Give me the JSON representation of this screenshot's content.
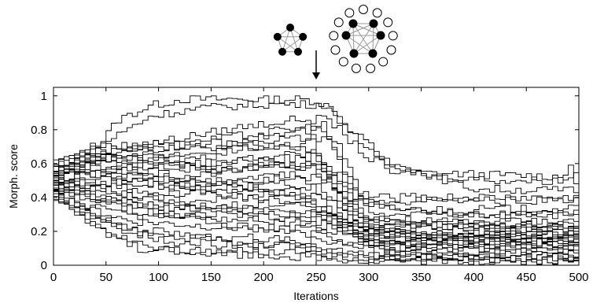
{
  "chart_data": {
    "type": "line",
    "xlabel": "Iterations",
    "ylabel": "Morph. score",
    "xlim": [
      0,
      500
    ],
    "ylim": [
      0,
      1.05
    ],
    "xticks": [
      0,
      50,
      100,
      150,
      200,
      250,
      300,
      350,
      400,
      450,
      500
    ],
    "yticks": [
      0,
      0.2,
      0.4,
      0.6,
      0.8,
      1
    ],
    "grid": false,
    "legend": "none",
    "line_color": "#000000",
    "annotation": {
      "arrow_at_x": 250,
      "graphs": [
        {
          "name": "small-graph-icon",
          "nodes": "5 filled nodes, fully connected"
        },
        {
          "name": "large-graph-icon",
          "nodes": "6 filled nodes inside a ring of 13 hollow nodes"
        }
      ]
    },
    "series": [
      {
        "x": [
          0,
          30,
          60,
          90,
          120,
          170,
          230,
          248,
          262,
          275,
          290,
          320,
          500
        ],
        "values": [
          0.48,
          0.62,
          0.86,
          0.94,
          0.98,
          0.98,
          0.98,
          0.97,
          0.93,
          0.85,
          0.72,
          0.55,
          0.52
        ]
      },
      {
        "x": [
          0,
          40,
          90,
          140,
          200,
          255,
          280,
          320,
          400,
          500
        ],
        "values": [
          0.52,
          0.7,
          0.88,
          0.93,
          0.95,
          0.95,
          0.8,
          0.6,
          0.45,
          0.44
        ]
      },
      {
        "x": [
          0,
          50,
          110,
          180,
          230,
          260,
          300,
          360,
          430,
          480,
          490,
          500
        ],
        "values": [
          0.45,
          0.68,
          0.74,
          0.82,
          0.86,
          0.86,
          0.62,
          0.52,
          0.5,
          0.5,
          0.58,
          0.42
        ]
      },
      {
        "x": [
          0,
          40,
          100,
          160,
          220,
          255,
          275,
          300,
          500
        ],
        "values": [
          0.55,
          0.72,
          0.68,
          0.75,
          0.8,
          0.83,
          0.55,
          0.3,
          0.3
        ]
      },
      {
        "x": [
          0,
          30,
          90,
          150,
          210,
          250,
          270,
          290,
          320,
          500
        ],
        "values": [
          0.6,
          0.65,
          0.7,
          0.72,
          0.77,
          0.8,
          0.7,
          0.42,
          0.38,
          0.38
        ]
      },
      {
        "x": [
          0,
          40,
          80,
          150,
          210,
          260,
          285,
          310,
          500
        ],
        "values": [
          0.5,
          0.62,
          0.72,
          0.7,
          0.74,
          0.75,
          0.4,
          0.4,
          0.4
        ]
      },
      {
        "x": [
          0,
          30,
          80,
          130,
          190,
          245,
          265,
          290,
          330,
          500
        ],
        "values": [
          0.42,
          0.58,
          0.66,
          0.62,
          0.7,
          0.72,
          0.48,
          0.2,
          0.18,
          0.18
        ]
      },
      {
        "x": [
          0,
          25,
          60,
          120,
          180,
          240,
          270,
          300,
          350,
          500
        ],
        "values": [
          0.58,
          0.66,
          0.62,
          0.66,
          0.7,
          0.68,
          0.42,
          0.28,
          0.26,
          0.26
        ]
      },
      {
        "x": [
          0,
          40,
          90,
          140,
          190,
          250,
          280,
          310,
          500
        ],
        "values": [
          0.48,
          0.55,
          0.6,
          0.58,
          0.64,
          0.66,
          0.3,
          0.1,
          0.08
        ]
      },
      {
        "x": [
          0,
          30,
          70,
          130,
          200,
          250,
          275,
          300,
          360,
          500
        ],
        "values": [
          0.62,
          0.7,
          0.64,
          0.6,
          0.62,
          0.64,
          0.44,
          0.18,
          0.15,
          0.15
        ]
      },
      {
        "x": [
          0,
          50,
          100,
          160,
          220,
          270,
          300,
          500
        ],
        "values": [
          0.44,
          0.52,
          0.58,
          0.56,
          0.6,
          0.55,
          0.22,
          0.22
        ]
      },
      {
        "x": [
          0,
          30,
          80,
          130,
          180,
          240,
          280,
          320,
          500
        ],
        "values": [
          0.54,
          0.6,
          0.55,
          0.52,
          0.58,
          0.6,
          0.38,
          0.33,
          0.33
        ]
      },
      {
        "x": [
          0,
          40,
          90,
          150,
          210,
          260,
          290,
          500
        ],
        "values": [
          0.4,
          0.48,
          0.52,
          0.5,
          0.54,
          0.5,
          0.16,
          0.16
        ]
      },
      {
        "x": [
          0,
          30,
          60,
          110,
          170,
          230,
          270,
          310,
          400,
          500
        ],
        "values": [
          0.58,
          0.54,
          0.5,
          0.46,
          0.5,
          0.52,
          0.35,
          0.24,
          0.22,
          0.22
        ]
      },
      {
        "x": [
          0,
          25,
          70,
          120,
          170,
          220,
          260,
          300,
          500
        ],
        "values": [
          0.46,
          0.5,
          0.45,
          0.42,
          0.46,
          0.48,
          0.3,
          0.12,
          0.12
        ]
      },
      {
        "x": [
          0,
          40,
          90,
          140,
          200,
          250,
          290,
          500
        ],
        "values": [
          0.52,
          0.46,
          0.4,
          0.38,
          0.42,
          0.4,
          0.18,
          0.18
        ]
      },
      {
        "x": [
          0,
          30,
          80,
          130,
          180,
          230,
          270,
          310,
          500
        ],
        "values": [
          0.44,
          0.4,
          0.36,
          0.34,
          0.36,
          0.38,
          0.22,
          0.06,
          0.05
        ]
      },
      {
        "x": [
          0,
          50,
          100,
          150,
          200,
          260,
          300,
          500
        ],
        "values": [
          0.5,
          0.44,
          0.38,
          0.35,
          0.32,
          0.3,
          0.2,
          0.2
        ]
      },
      {
        "x": [
          0,
          20,
          60,
          100,
          150,
          200,
          250,
          300,
          500
        ],
        "values": [
          0.48,
          0.38,
          0.3,
          0.28,
          0.3,
          0.28,
          0.26,
          0.24,
          0.24
        ]
      },
      {
        "x": [
          0,
          30,
          70,
          120,
          170,
          220,
          270,
          320,
          500
        ],
        "values": [
          0.42,
          0.34,
          0.26,
          0.24,
          0.22,
          0.22,
          0.2,
          0.14,
          0.14
        ]
      },
      {
        "x": [
          0,
          20,
          50,
          90,
          140,
          200,
          260,
          320,
          500
        ],
        "values": [
          0.46,
          0.36,
          0.24,
          0.18,
          0.16,
          0.16,
          0.14,
          0.1,
          0.1
        ]
      },
      {
        "x": [
          0,
          30,
          70,
          110,
          160,
          220,
          280,
          330,
          500
        ],
        "values": [
          0.4,
          0.3,
          0.2,
          0.14,
          0.12,
          0.12,
          0.08,
          0.04,
          0.04
        ]
      },
      {
        "x": [
          0,
          20,
          50,
          80,
          130,
          190,
          250,
          310,
          500
        ],
        "values": [
          0.44,
          0.3,
          0.18,
          0.1,
          0.08,
          0.08,
          0.06,
          0.03,
          0.03
        ]
      },
      {
        "x": [
          0,
          40,
          80,
          120,
          170,
          230,
          290,
          500
        ],
        "values": [
          0.38,
          0.28,
          0.22,
          0.18,
          0.14,
          0.1,
          0.05,
          0.05
        ]
      },
      {
        "x": [
          0,
          30,
          60,
          100,
          150,
          210,
          270,
          340,
          500
        ],
        "values": [
          0.5,
          0.42,
          0.34,
          0.3,
          0.28,
          0.26,
          0.22,
          0.18,
          0.18
        ]
      },
      {
        "x": [
          0,
          20,
          60,
          110,
          160,
          230,
          290,
          350,
          500
        ],
        "values": [
          0.52,
          0.45,
          0.38,
          0.34,
          0.32,
          0.3,
          0.28,
          0.24,
          0.24
        ]
      },
      {
        "x": [
          0,
          30,
          80,
          120,
          180,
          230,
          260,
          300,
          500
        ],
        "values": [
          0.56,
          0.62,
          0.58,
          0.5,
          0.46,
          0.42,
          0.3,
          0.14,
          0.14
        ]
      },
      {
        "x": [
          0,
          40,
          80,
          130,
          180,
          240,
          280,
          320,
          500
        ],
        "values": [
          0.6,
          0.58,
          0.52,
          0.46,
          0.4,
          0.36,
          0.2,
          0.08,
          0.07
        ]
      },
      {
        "x": [
          0,
          30,
          70,
          110,
          160,
          210,
          250,
          290,
          500
        ],
        "values": [
          0.46,
          0.42,
          0.36,
          0.3,
          0.24,
          0.2,
          0.18,
          0.12,
          0.12
        ]
      },
      {
        "x": [
          0,
          20,
          40,
          80,
          120,
          180,
          240,
          300,
          500
        ],
        "values": [
          0.42,
          0.32,
          0.22,
          0.12,
          0.08,
          0.06,
          0.05,
          0.02,
          0.02
        ]
      },
      {
        "x": [
          0,
          40,
          100,
          160,
          220,
          260,
          300,
          380,
          500
        ],
        "values": [
          0.54,
          0.64,
          0.6,
          0.56,
          0.58,
          0.56,
          0.36,
          0.3,
          0.3
        ]
      },
      {
        "x": [
          0,
          30,
          90,
          150,
          200,
          250,
          280,
          340,
          500
        ],
        "values": [
          0.58,
          0.56,
          0.48,
          0.44,
          0.44,
          0.46,
          0.26,
          0.16,
          0.16
        ]
      }
    ]
  }
}
